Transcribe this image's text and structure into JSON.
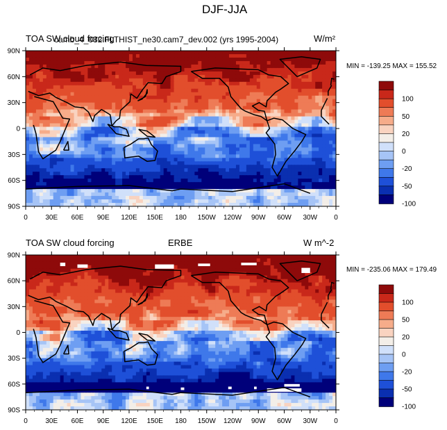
{
  "page_title": "DJF-JJA",
  "chart_data": [
    {
      "type": "heatmap",
      "title_left": "TOA SW cloud forcing",
      "title_center": "camb_4_032.FLTHIST_ne30.cam7_dev.002 (yrs 1995-2004)",
      "title_right": "W/m²",
      "min_max": "MIN = -139.25 MAX = 155.52",
      "min": -139.25,
      "max": 155.52,
      "x_ticks": [
        "0",
        "30E",
        "60E",
        "90E",
        "120E",
        "150E",
        "180",
        "150W",
        "120W",
        "90W",
        "60W",
        "30W",
        "0"
      ],
      "y_ticks": [
        "90N",
        "60N",
        "30N",
        "0",
        "30S",
        "60S",
        "90S"
      ],
      "colorbar_labels": [
        "100",
        "50",
        "20",
        "0",
        "-20",
        "-50",
        "-100"
      ],
      "colorbar_levels": [
        -120,
        -100,
        -80,
        -50,
        -35,
        -20,
        -10,
        0,
        10,
        20,
        35,
        50,
        80,
        100,
        120
      ],
      "missing_mask": false
    },
    {
      "type": "heatmap",
      "title_left": "TOA SW cloud forcing",
      "title_center": "ERBE",
      "title_right": "W m^-2",
      "min_max": "MIN = -235.06 MAX = 179.49",
      "min": -235.06,
      "max": 179.49,
      "x_ticks": [
        "0",
        "30E",
        "60E",
        "90E",
        "120E",
        "150E",
        "180",
        "150W",
        "120W",
        "90W",
        "60W",
        "30W",
        "0"
      ],
      "y_ticks": [
        "90N",
        "60N",
        "30N",
        "0",
        "30S",
        "60S",
        "90S"
      ],
      "colorbar_labels": [
        "100",
        "50",
        "20",
        "0",
        "-20",
        "-50",
        "-100"
      ],
      "colorbar_levels": [
        -120,
        -100,
        -80,
        -50,
        -35,
        -20,
        -10,
        0,
        10,
        20,
        35,
        50,
        80,
        100,
        120
      ],
      "missing_mask": true
    }
  ],
  "palette": [
    "#00007a",
    "#0a2fb0",
    "#1e50d8",
    "#3f78ea",
    "#6e9ef2",
    "#a6c4f6",
    "#d0e0fa",
    "#f3eee8",
    "#f9d3c0",
    "#f6ac8a",
    "#ee7b56",
    "#e24e2c",
    "#c9281a",
    "#8e0a0a"
  ]
}
